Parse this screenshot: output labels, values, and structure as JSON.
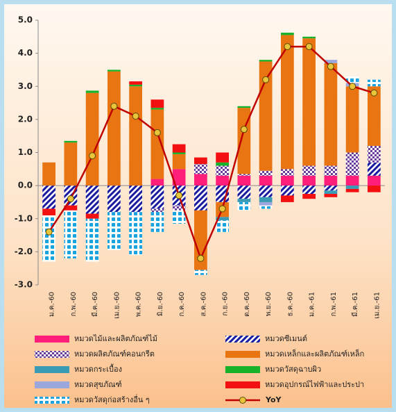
{
  "chart_data": {
    "type": "bar",
    "categories": [
      "ม.ค.-60",
      "ก.พ.-60",
      "มี.ค.-60",
      "เม.ย.-60",
      "พ.ค.-60",
      "มิ.ย.-60",
      "ก.ค.-60",
      "ส.ค.-60",
      "ก.ย.-60",
      "ต.ค.-60",
      "พ.ย.-60",
      "ธ.ค.-60",
      "ม.ค.-61",
      "ก.พ.-61",
      "มี.ค.-61",
      "เม.ย.-61"
    ],
    "ylim": [
      -3,
      5
    ],
    "yticks": [
      {
        "value": -3,
        "label": "-3.0"
      },
      {
        "value": -2,
        "label": "-2.0"
      },
      {
        "value": -1,
        "label": "-1.0"
      },
      {
        "value": 0,
        "label": "0.0"
      },
      {
        "value": 1,
        "label": "1.0"
      },
      {
        "value": 2,
        "label": "2.0"
      },
      {
        "value": 3,
        "label": "3.0"
      },
      {
        "value": 4,
        "label": "4.0"
      },
      {
        "value": 5,
        "label": "5.0"
      }
    ],
    "grid": false,
    "stacked": true,
    "series": [
      {
        "name": "หมวดไม้และผลิตภัณฑ์ไม้",
        "color": "#ff1f7a",
        "pattern": "solid",
        "values": [
          0,
          0,
          0,
          0,
          0,
          0.2,
          0.5,
          0.35,
          0.3,
          0.3,
          0.3,
          0.3,
          0.3,
          0.3,
          0.3,
          0.3
        ]
      },
      {
        "name": "หมวดซีเมนต์",
        "color": "#1a1aa0",
        "pattern": "diagonal",
        "values": [
          -0.7,
          -0.6,
          -0.85,
          -0.8,
          -0.8,
          -0.7,
          -0.6,
          -0.75,
          -0.5,
          -0.4,
          -0.35,
          -0.3,
          -0.25,
          -0.15,
          0,
          0.4
        ]
      },
      {
        "name": "หมวดผลิตภัณฑ์คอนกรีต",
        "color": "#6a3a9c",
        "pattern": "checker",
        "values": [
          0,
          0,
          0,
          0,
          0,
          -0.1,
          -0.15,
          0.3,
          0.3,
          0.05,
          0.15,
          0.2,
          0.3,
          0.3,
          0.7,
          0.5
        ]
      },
      {
        "name": "หมวดเหล็กและผลิตภัณฑ์เหล็ก",
        "color": "#e87511",
        "pattern": "solid",
        "values": [
          0.7,
          1.3,
          2.8,
          3.45,
          3.0,
          2.1,
          0.45,
          -1.8,
          -0.45,
          2.0,
          3.3,
          4.05,
          3.85,
          3.1,
          2.0,
          1.8
        ]
      },
      {
        "name": "หมวดกระเบื้อง",
        "color": "#3a9bb5",
        "pattern": "solid",
        "values": [
          0,
          0,
          0,
          0,
          0,
          0,
          0,
          0,
          -0.1,
          -0.1,
          -0.15,
          0,
          0,
          -0.1,
          -0.1,
          0
        ]
      },
      {
        "name": "หมวดวัสดุฉาบผิว",
        "color": "#17b22a",
        "pattern": "solid",
        "values": [
          0,
          0.05,
          0.07,
          0.05,
          0.05,
          0.05,
          0.05,
          0,
          0.1,
          0.05,
          0.05,
          0.07,
          0.05,
          0,
          0,
          0
        ]
      },
      {
        "name": "หมวดสุขภัณฑ์",
        "color": "#9aa6dc",
        "pattern": "solid",
        "values": [
          0,
          0,
          0,
          0,
          0,
          0,
          0,
          0,
          0,
          0,
          -0.1,
          0,
          0,
          0.1,
          0.1,
          0
        ]
      },
      {
        "name": "หมวดอุปกรณ์ไฟฟ้าและประปา",
        "color": "#f21010",
        "pattern": "solid",
        "values": [
          -0.2,
          -0.15,
          -0.15,
          0,
          0.1,
          0.25,
          0.25,
          0.2,
          0.3,
          0,
          0,
          -0.2,
          -0.15,
          -0.1,
          -0.1,
          -0.2
        ]
      },
      {
        "name": "หมวดวัสดุก่อสร้างอื่น ๆ",
        "color": "#1aa3e0",
        "pattern": "dots",
        "values": [
          -1.4,
          -1.45,
          -1.3,
          -1.15,
          -1.3,
          -0.6,
          -0.4,
          -0.15,
          -0.35,
          -0.25,
          -0.1,
          0,
          0,
          0,
          0.2,
          0.2
        ]
      },
      {
        "name": "YoY",
        "color": "#c00000",
        "type": "line",
        "values": [
          -1.4,
          -0.4,
          0.9,
          2.4,
          2.1,
          1.6,
          -0.3,
          -2.2,
          -0.7,
          1.7,
          3.2,
          4.2,
          4.2,
          3.6,
          3.0,
          2.8
        ]
      }
    ]
  }
}
